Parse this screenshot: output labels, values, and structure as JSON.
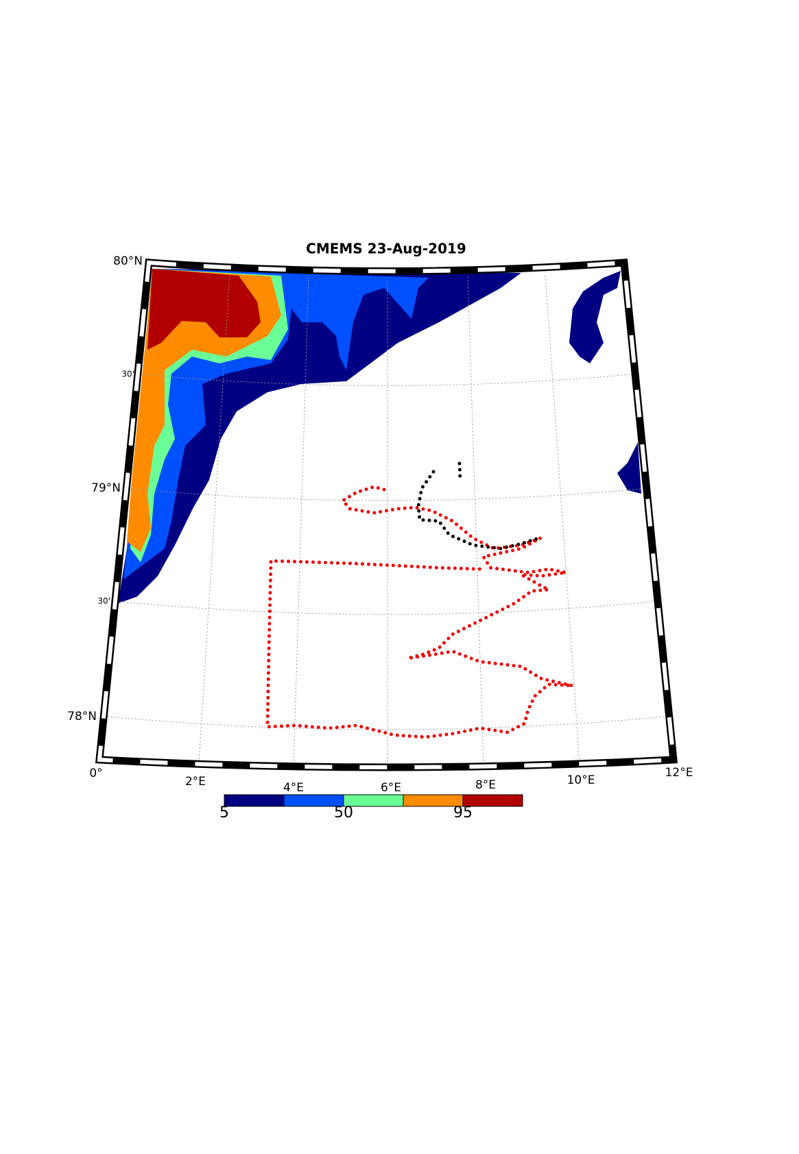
{
  "title": "CMEMS 23-Aug-2019",
  "lat_labels": [
    "80°N",
    "30'",
    "79°N",
    "30'",
    "78°N"
  ],
  "lon_labels": [
    "0°",
    "2°E",
    "4°E",
    "6°E",
    "8°E",
    "10°E",
    "12°E"
  ],
  "colorbar": {
    "colors": [
      "#000083",
      "#0050ff",
      "#6aff96",
      "#ff8c00",
      "#b00000"
    ],
    "bounds": [
      5,
      27.5,
      50,
      72.5,
      95,
      117.5
    ],
    "ticks": [
      5,
      50,
      95
    ]
  }
}
